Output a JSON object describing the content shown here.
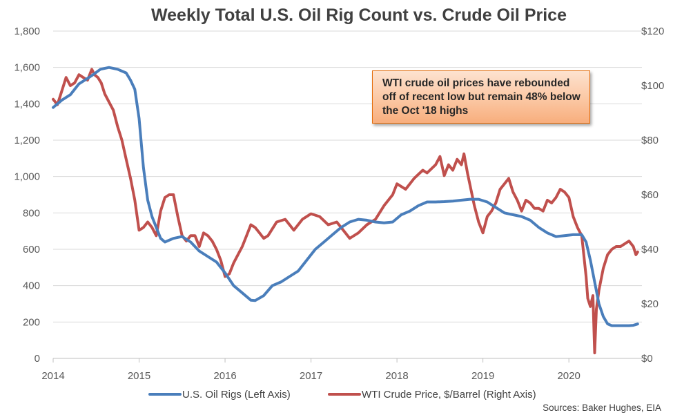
{
  "chart_data": {
    "type": "line",
    "title": "Weekly Total U.S. Oil Rig Count vs. Crude Oil Price",
    "x_tick_labels": [
      "2014",
      "2015",
      "2016",
      "2017",
      "2018",
      "2019",
      "2020"
    ],
    "xlim": [
      2014.0,
      2020.85
    ],
    "y_left": {
      "lim": [
        0,
        1800
      ],
      "tick_labels": [
        "0",
        "200",
        "400",
        "600",
        "800",
        "1,000",
        "1,200",
        "1,400",
        "1,600",
        "1,800"
      ]
    },
    "y_right": {
      "lim": [
        0,
        120
      ],
      "tick_labels": [
        "$0",
        "$20",
        "$40",
        "$60",
        "$80",
        "$100",
        "$120"
      ]
    },
    "grid": "horizontal",
    "legend_position": "bottom",
    "series": [
      {
        "name": "U.S. Oil Rigs (Left Axis)",
        "axis": "left",
        "color": "#4a7ebb",
        "x": [
          2014.0,
          2014.1,
          2014.2,
          2014.3,
          2014.45,
          2014.55,
          2014.65,
          2014.75,
          2014.85,
          2014.9,
          2014.95,
          2015.0,
          2015.05,
          2015.1,
          2015.15,
          2015.2,
          2015.25,
          2015.3,
          2015.4,
          2015.5,
          2015.6,
          2015.7,
          2015.8,
          2015.9,
          2016.0,
          2016.1,
          2016.2,
          2016.3,
          2016.35,
          2016.45,
          2016.55,
          2016.65,
          2016.75,
          2016.85,
          2016.95,
          2017.05,
          2017.15,
          2017.25,
          2017.35,
          2017.45,
          2017.55,
          2017.65,
          2017.75,
          2017.85,
          2017.95,
          2018.05,
          2018.15,
          2018.25,
          2018.35,
          2018.45,
          2018.55,
          2018.65,
          2018.75,
          2018.85,
          2018.95,
          2019.05,
          2019.15,
          2019.25,
          2019.35,
          2019.45,
          2019.55,
          2019.65,
          2019.75,
          2019.85,
          2019.95,
          2020.05,
          2020.15,
          2020.2,
          2020.25,
          2020.3,
          2020.35,
          2020.4,
          2020.45,
          2020.5,
          2020.6,
          2020.7,
          2020.75,
          2020.8
        ],
        "values": [
          1380,
          1420,
          1450,
          1510,
          1555,
          1590,
          1600,
          1590,
          1570,
          1530,
          1480,
          1320,
          1050,
          870,
          780,
          720,
          660,
          640,
          660,
          670,
          640,
          590,
          560,
          530,
          470,
          400,
          360,
          320,
          318,
          345,
          400,
          420,
          450,
          480,
          540,
          600,
          640,
          680,
          720,
          750,
          765,
          760,
          750,
          745,
          750,
          790,
          810,
          840,
          860,
          860,
          862,
          865,
          870,
          875,
          875,
          860,
          830,
          800,
          790,
          780,
          760,
          720,
          690,
          670,
          675,
          680,
          680,
          640,
          540,
          420,
          300,
          230,
          190,
          180,
          180,
          180,
          182,
          189
        ]
      },
      {
        "name": "WTI Crude Price, $/Barrel (Right Axis)",
        "axis": "right",
        "color": "#c0504d",
        "x": [
          2014.0,
          2014.05,
          2014.1,
          2014.15,
          2014.2,
          2014.25,
          2014.3,
          2014.35,
          2014.4,
          2014.45,
          2014.48,
          2014.52,
          2014.56,
          2014.6,
          2014.65,
          2014.7,
          2014.75,
          2014.8,
          2014.85,
          2014.9,
          2014.95,
          2015.0,
          2015.05,
          2015.1,
          2015.15,
          2015.2,
          2015.25,
          2015.3,
          2015.35,
          2015.4,
          2015.45,
          2015.5,
          2015.55,
          2015.6,
          2015.65,
          2015.7,
          2015.75,
          2015.8,
          2015.85,
          2015.9,
          2015.95,
          2016.0,
          2016.05,
          2016.1,
          2016.15,
          2016.2,
          2016.25,
          2016.3,
          2016.35,
          2016.4,
          2016.45,
          2016.5,
          2016.6,
          2016.7,
          2016.8,
          2016.9,
          2017.0,
          2017.1,
          2017.2,
          2017.3,
          2017.4,
          2017.45,
          2017.55,
          2017.65,
          2017.75,
          2017.85,
          2017.95,
          2018.0,
          2018.1,
          2018.2,
          2018.3,
          2018.35,
          2018.45,
          2018.5,
          2018.55,
          2018.6,
          2018.65,
          2018.7,
          2018.75,
          2018.78,
          2018.82,
          2018.86,
          2018.9,
          2018.95,
          2019.0,
          2019.05,
          2019.1,
          2019.15,
          2019.2,
          2019.25,
          2019.3,
          2019.35,
          2019.4,
          2019.45,
          2019.5,
          2019.55,
          2019.6,
          2019.65,
          2019.7,
          2019.75,
          2019.8,
          2019.85,
          2019.9,
          2019.95,
          2020.0,
          2020.05,
          2020.1,
          2020.15,
          2020.2,
          2020.22,
          2020.25,
          2020.28,
          2020.3,
          2020.32,
          2020.35,
          2020.4,
          2020.45,
          2020.5,
          2020.55,
          2020.6,
          2020.65,
          2020.7,
          2020.75,
          2020.78,
          2020.8
        ],
        "values": [
          95,
          93,
          98,
          103,
          100,
          101,
          104,
          103,
          102,
          106,
          104,
          103,
          101,
          97,
          94,
          91,
          85,
          80,
          73,
          66,
          58,
          47,
          48,
          50,
          48,
          45,
          54,
          59,
          60,
          60,
          52,
          45,
          43,
          45,
          45,
          41,
          46,
          45,
          43,
          40,
          36,
          30,
          31,
          35,
          38,
          41,
          45,
          49,
          48,
          46,
          44,
          45,
          50,
          51,
          47,
          51,
          53,
          52,
          49,
          50,
          46,
          44,
          46,
          49,
          51,
          56,
          60,
          64,
          62,
          66,
          69,
          68,
          71,
          74,
          67,
          71,
          69,
          73,
          71,
          75,
          68,
          62,
          56,
          50,
          46,
          52,
          54,
          57,
          62,
          64,
          66,
          61,
          58,
          54,
          58,
          57,
          55,
          55,
          54,
          58,
          57,
          59,
          62,
          61,
          59,
          52,
          48,
          45,
          30,
          22,
          19,
          23,
          2,
          18,
          25,
          33,
          38,
          40,
          41,
          41,
          42,
          43,
          41,
          38,
          39
        ]
      }
    ],
    "annotation": "WTI crude oil prices have rebounded off of recent low but remain 48% below the Oct '18 highs",
    "source": "Sources: Baker Hughes, EIA"
  }
}
